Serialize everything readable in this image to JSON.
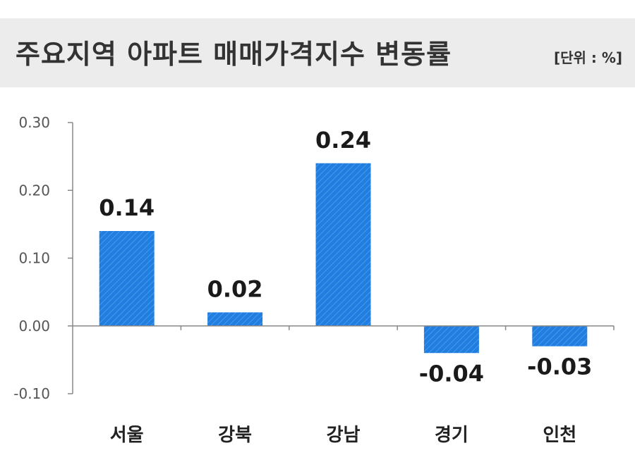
{
  "header": {
    "title": "주요지역 아파트 매매가격지수 변동률",
    "unit": "[단위 : %]"
  },
  "colors": {
    "bar": "#1f7ee0",
    "bar_hatch": "#4a99ea",
    "axis": "#888888",
    "tick_text": "#555555",
    "value_text": "#1a1a1a",
    "header_bg": "#ececec"
  },
  "chart_data": {
    "type": "bar",
    "categories": [
      "서울",
      "강북",
      "강남",
      "경기",
      "인천"
    ],
    "values": [
      0.14,
      0.02,
      0.24,
      -0.04,
      -0.03
    ],
    "value_labels": [
      "0.14",
      "0.02",
      "0.24",
      "-0.04",
      "-0.03"
    ],
    "ylim": [
      -0.1,
      0.3
    ],
    "yticks": [
      0.3,
      0.2,
      0.1,
      0.0,
      -0.1
    ],
    "ytick_labels": [
      "0.30",
      "0.20",
      "0.10",
      "0.00",
      "-0.10"
    ],
    "grid": false,
    "legend": "none"
  }
}
